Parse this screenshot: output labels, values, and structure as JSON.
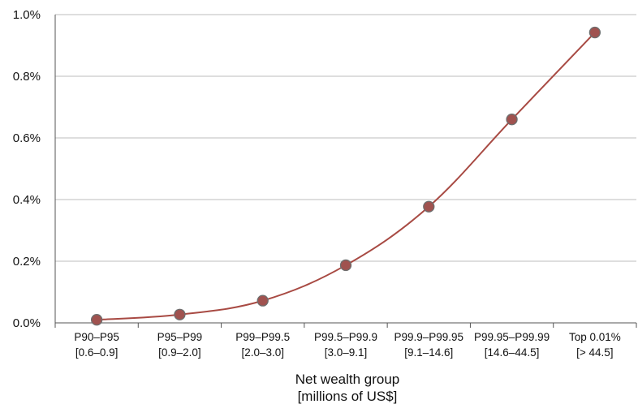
{
  "chart_data": {
    "type": "line",
    "title": "",
    "xlabel": "Net wealth group",
    "xlabel_sub": "[millions of US$]",
    "ylabel": "",
    "ylim": [
      0,
      1.0
    ],
    "y_ticks": [
      "0.0%",
      "0.2%",
      "0.4%",
      "0.6%",
      "0.8%",
      "1.0%"
    ],
    "grid": true,
    "legend": "none",
    "categories": [
      {
        "name": "P90–P95",
        "range": "[0.6–0.9]"
      },
      {
        "name": "P95–P99",
        "range": "[0.9–2.0]"
      },
      {
        "name": "P99–P99.5",
        "range": "[2.0–3.0]"
      },
      {
        "name": "P99.5–P99.9",
        "range": "[3.0–9.1]"
      },
      {
        "name": "P99.9–P99.95",
        "range": "[9.1–14.6]"
      },
      {
        "name": "P99.95–P99.99",
        "range": "[14.6–44.5]"
      },
      {
        "name": "Top 0.01%",
        "range": "[> 44.5]"
      }
    ],
    "series": [
      {
        "values": [
          0.01,
          0.027,
          0.072,
          0.187,
          0.377,
          0.66,
          0.942
        ],
        "color": "#a84a43",
        "marker_color": "#a0524f"
      }
    ]
  }
}
